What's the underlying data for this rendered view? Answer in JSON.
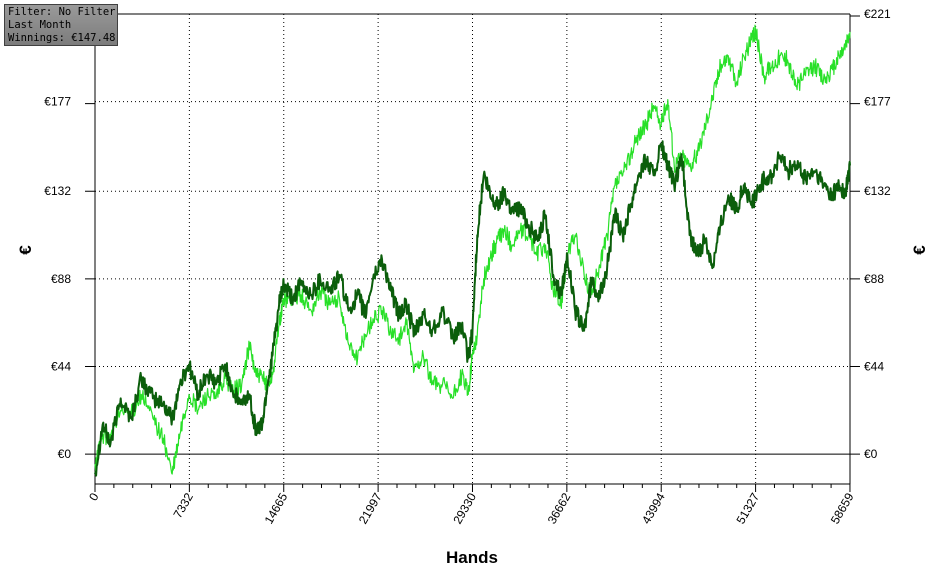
{
  "info": {
    "filter": "Filter: No Filter",
    "period": "Last Month",
    "winnings": "Winnings: €147.48"
  },
  "colors": {
    "series_dark": "#0b5e0b",
    "series_light": "#28e028",
    "grid": "#000000",
    "zero_line": "#000000"
  },
  "chart_data": {
    "type": "line",
    "xlabel": "Hands",
    "ylabel": "€",
    "xlim": [
      0,
      58659
    ],
    "ylim": [
      -15,
      221
    ],
    "x_ticks": [
      "0",
      "7332",
      "14665",
      "21997",
      "29330",
      "36662",
      "43994",
      "51327",
      "58659"
    ],
    "y_ticks": [
      "€0",
      "€44",
      "€88",
      "€132",
      "€177",
      "€221"
    ],
    "y_tick_values": [
      0,
      44,
      88,
      132,
      177,
      221
    ],
    "grid": true,
    "series": [
      {
        "color": "#0b5e0b",
        "x": [
          0,
          600,
          1200,
          2000,
          2800,
          3600,
          4500,
          5300,
          6000,
          6600,
          7300,
          8000,
          8700,
          9400,
          10100,
          10800,
          11400,
          12000,
          12500,
          13000,
          13400,
          13800,
          14300,
          14665,
          15300,
          16000,
          16800,
          17500,
          18300,
          19000,
          19700,
          20400,
          21000,
          21600,
          22300,
          23000,
          23600,
          24200,
          24800,
          25500,
          26200,
          27000,
          27800,
          28500,
          29000,
          29330,
          29700,
          30200,
          30800,
          31300,
          31800,
          32400,
          33000,
          33700,
          34300,
          35000,
          35600,
          36200,
          36700,
          37300,
          38000,
          38600,
          39200,
          39800,
          40400,
          41000,
          41600,
          42200,
          42800,
          43400,
          43994,
          44500,
          45000,
          45600,
          46200,
          46800,
          47400,
          48000,
          48600,
          49200,
          49800,
          50400,
          51000,
          51327,
          52000,
          52600,
          53200,
          53800,
          54500,
          55200,
          55900,
          56600,
          57300,
          57800,
          58300,
          58659
        ],
        "y": [
          -10,
          15,
          5,
          28,
          18,
          38,
          28,
          25,
          18,
          35,
          45,
          30,
          40,
          35,
          45,
          30,
          25,
          30,
          12,
          15,
          35,
          50,
          75,
          85,
          78,
          85,
          80,
          88,
          82,
          90,
          72,
          80,
          70,
          88,
          98,
          82,
          70,
          75,
          60,
          70,
          62,
          72,
          58,
          65,
          48,
          62,
          110,
          140,
          128,
          125,
          132,
          122,
          124,
          115,
          108,
          120,
          90,
          80,
          100,
          72,
          62,
          88,
          78,
          95,
          120,
          110,
          125,
          140,
          148,
          140,
          155,
          145,
          135,
          148,
          110,
          100,
          108,
          95,
          115,
          130,
          122,
          135,
          125,
          130,
          138,
          140,
          150,
          142,
          145,
          138,
          142,
          135,
          130,
          135,
          130,
          145
        ]
      },
      {
        "color": "#28e028",
        "x": [
          0,
          600,
          1200,
          2000,
          2800,
          3600,
          4500,
          5300,
          6000,
          6600,
          7300,
          8000,
          8700,
          9400,
          10100,
          10800,
          11400,
          12000,
          12500,
          13000,
          13400,
          13800,
          14300,
          14665,
          15300,
          16000,
          16800,
          17500,
          18300,
          19000,
          19700,
          20400,
          21000,
          21600,
          22300,
          23000,
          23600,
          24200,
          24800,
          25500,
          26200,
          27000,
          27800,
          28500,
          29000,
          29330,
          29700,
          30200,
          30800,
          31300,
          31800,
          32400,
          33000,
          33700,
          34300,
          35000,
          35600,
          36200,
          36700,
          37300,
          38000,
          38600,
          39200,
          39800,
          40400,
          41000,
          41600,
          42200,
          42800,
          43400,
          43994,
          44500,
          45000,
          45600,
          46200,
          46800,
          47400,
          48000,
          48600,
          49200,
          49800,
          50400,
          51000,
          51327,
          52000,
          52600,
          53200,
          53800,
          54500,
          55200,
          55900,
          56600,
          57300,
          57800,
          58300,
          58659
        ],
        "y": [
          -5,
          10,
          8,
          22,
          20,
          30,
          18,
          8,
          -10,
          10,
          30,
          22,
          30,
          28,
          38,
          32,
          35,
          55,
          40,
          38,
          35,
          40,
          65,
          78,
          78,
          80,
          72,
          82,
          75,
          78,
          55,
          48,
          60,
          68,
          72,
          62,
          58,
          65,
          42,
          50,
          35,
          35,
          28,
          40,
          30,
          50,
          60,
          88,
          100,
          108,
          112,
          105,
          112,
          110,
          100,
          105,
          82,
          75,
          100,
          110,
          90,
          80,
          95,
          110,
          135,
          140,
          150,
          160,
          165,
          175,
          165,
          178,
          145,
          150,
          145,
          150,
          165,
          180,
          195,
          200,
          185,
          200,
          208,
          212,
          190,
          195,
          200,
          198,
          185,
          190,
          195,
          188,
          193,
          200,
          205,
          212
        ]
      }
    ]
  }
}
